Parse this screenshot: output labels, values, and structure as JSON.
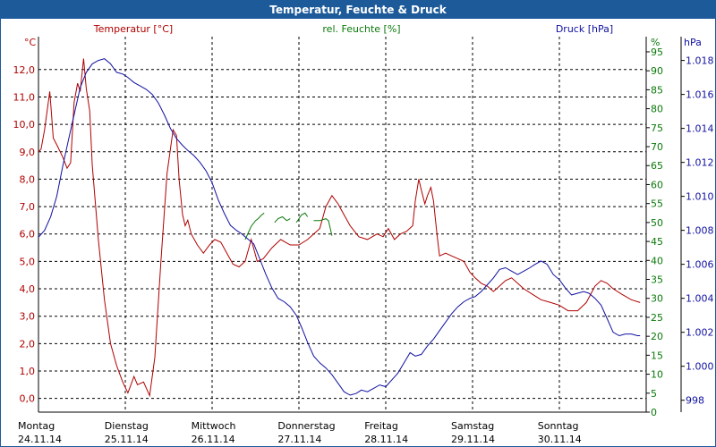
{
  "window": {
    "title": "Temperatur, Feuchte & Druck"
  },
  "colors": {
    "temperature": "#b00000",
    "humidity": "#0a7a0a",
    "pressure": "#1010a0",
    "titlebar": "#1d5a9a"
  },
  "chart_data": {
    "type": "line",
    "title": "Temperatur, Feuchte & Druck",
    "axes": {
      "temperature": {
        "unit": "°C",
        "label": "Temperatur [°C]",
        "range": [
          -0.5,
          13.2
        ],
        "ticks": [
          0,
          1,
          2,
          3,
          4,
          5,
          6,
          7,
          8,
          9,
          10,
          11,
          12
        ],
        "tick_labels": [
          "0,0",
          "1,0",
          "2,0",
          "3,0",
          "4,0",
          "5,0",
          "6,0",
          "7,0",
          "8,0",
          "9,0",
          "10,0",
          "11,0",
          "12,0"
        ]
      },
      "humidity": {
        "unit": "%",
        "label": "rel. Feuchte [%]",
        "range": [
          0,
          99
        ],
        "ticks": [
          0,
          5,
          10,
          15,
          20,
          25,
          30,
          35,
          40,
          45,
          50,
          55,
          60,
          65,
          70,
          75,
          80,
          85,
          90,
          95
        ],
        "tick_labels": [
          "0",
          "5",
          "10",
          "15",
          "20",
          "25",
          "30",
          "35",
          "40",
          "45",
          "50",
          "55",
          "60",
          "65",
          "70",
          "75",
          "80",
          "85",
          "90",
          "95"
        ]
      },
      "pressure": {
        "unit": "hPa",
        "label": "Druck [hPa]",
        "range": [
          997.3,
          1019.4
        ],
        "ticks": [
          998,
          1000,
          1002,
          1004,
          1006,
          1008,
          1010,
          1012,
          1014,
          1016,
          1018
        ],
        "tick_labels": [
          "998",
          "1.000",
          "1.002",
          "1.004",
          "1.006",
          "1.008",
          "1.010",
          "1.012",
          "1.014",
          "1.016",
          "1.018"
        ]
      }
    },
    "x_axis": {
      "range_days": [
        0,
        7
      ],
      "days": [
        {
          "name": "Montag",
          "date": "24.11.14"
        },
        {
          "name": "Dienstag",
          "date": "25.11.14"
        },
        {
          "name": "Mittwoch",
          "date": "26.11.14"
        },
        {
          "name": "Donnerstag",
          "date": "27.11.14"
        },
        {
          "name": "Freitag",
          "date": "28.11.14"
        },
        {
          "name": "Samstag",
          "date": "29.11.14"
        },
        {
          "name": "Sonntag",
          "date": "30.11.14"
        }
      ]
    },
    "series": [
      {
        "name": "Temperatur",
        "axis": "temperature",
        "points": [
          [
            0,
            9.0
          ],
          [
            0.03,
            9.1
          ],
          [
            0.07,
            9.8
          ],
          [
            0.13,
            11.2
          ],
          [
            0.15,
            10.4
          ],
          [
            0.17,
            9.5
          ],
          [
            0.22,
            9.2
          ],
          [
            0.28,
            8.8
          ],
          [
            0.33,
            8.4
          ],
          [
            0.37,
            8.6
          ],
          [
            0.41,
            10.8
          ],
          [
            0.45,
            11.5
          ],
          [
            0.48,
            11.2
          ],
          [
            0.52,
            12.4
          ],
          [
            0.55,
            11.3
          ],
          [
            0.59,
            10.5
          ],
          [
            0.62,
            8.5
          ],
          [
            0.69,
            5.8
          ],
          [
            0.76,
            3.6
          ],
          [
            0.83,
            2.0
          ],
          [
            0.9,
            1.2
          ],
          [
            0.97,
            0.6
          ],
          [
            1.03,
            0.2
          ],
          [
            1.1,
            0.8
          ],
          [
            1.14,
            0.5
          ],
          [
            1.21,
            0.6
          ],
          [
            1.28,
            0.1
          ],
          [
            1.34,
            1.5
          ],
          [
            1.41,
            5.0
          ],
          [
            1.48,
            8.2
          ],
          [
            1.55,
            9.8
          ],
          [
            1.59,
            9.6
          ],
          [
            1.62,
            8.0
          ],
          [
            1.66,
            6.7
          ],
          [
            1.69,
            6.3
          ],
          [
            1.72,
            6.5
          ],
          [
            1.76,
            6.0
          ],
          [
            1.83,
            5.6
          ],
          [
            1.9,
            5.3
          ],
          [
            1.97,
            5.6
          ],
          [
            2.03,
            5.8
          ],
          [
            2.1,
            5.7
          ],
          [
            2.17,
            5.3
          ],
          [
            2.24,
            4.9
          ],
          [
            2.31,
            4.8
          ],
          [
            2.38,
            5.0
          ],
          [
            2.45,
            5.8
          ],
          [
            2.52,
            5.0
          ],
          [
            2.59,
            5.1
          ],
          [
            2.69,
            5.5
          ],
          [
            2.79,
            5.8
          ],
          [
            2.9,
            5.6
          ],
          [
            3.0,
            5.6
          ],
          [
            3.1,
            5.8
          ],
          [
            3.17,
            6.0
          ],
          [
            3.24,
            6.2
          ],
          [
            3.31,
            7.0
          ],
          [
            3.38,
            7.4
          ],
          [
            3.45,
            7.1
          ],
          [
            3.52,
            6.7
          ],
          [
            3.59,
            6.3
          ],
          [
            3.69,
            5.9
          ],
          [
            3.79,
            5.8
          ],
          [
            3.9,
            6.0
          ],
          [
            3.97,
            5.9
          ],
          [
            4.03,
            6.2
          ],
          [
            4.1,
            5.8
          ],
          [
            4.17,
            6.0
          ],
          [
            4.24,
            6.1
          ],
          [
            4.31,
            6.3
          ],
          [
            4.34,
            7.2
          ],
          [
            4.38,
            8.0
          ],
          [
            4.41,
            7.6
          ],
          [
            4.45,
            7.1
          ],
          [
            4.48,
            7.4
          ],
          [
            4.52,
            7.7
          ],
          [
            4.55,
            7.2
          ],
          [
            4.59,
            6.0
          ],
          [
            4.62,
            5.2
          ],
          [
            4.69,
            5.3
          ],
          [
            4.76,
            5.2
          ],
          [
            4.83,
            5.1
          ],
          [
            4.9,
            5.0
          ],
          [
            4.97,
            4.6
          ],
          [
            5.03,
            4.4
          ],
          [
            5.1,
            4.2
          ],
          [
            5.17,
            4.1
          ],
          [
            5.24,
            3.9
          ],
          [
            5.31,
            4.1
          ],
          [
            5.38,
            4.3
          ],
          [
            5.45,
            4.4
          ],
          [
            5.52,
            4.2
          ],
          [
            5.59,
            4.0
          ],
          [
            5.69,
            3.8
          ],
          [
            5.79,
            3.6
          ],
          [
            5.9,
            3.5
          ],
          [
            6.0,
            3.4
          ],
          [
            6.1,
            3.2
          ],
          [
            6.21,
            3.2
          ],
          [
            6.31,
            3.5
          ],
          [
            6.41,
            4.1
          ],
          [
            6.48,
            4.3
          ],
          [
            6.55,
            4.2
          ],
          [
            6.62,
            4.0
          ],
          [
            6.72,
            3.8
          ],
          [
            6.83,
            3.6
          ],
          [
            6.93,
            3.5
          ]
        ]
      },
      {
        "name": "rel. Feuchte",
        "axis": "humidity",
        "segments": [
          [
            [
              2.38,
              45.5
            ],
            [
              2.45,
              49.0
            ],
            [
              2.5,
              50.5
            ],
            [
              2.53,
              51.0
            ],
            [
              2.55,
              51.5
            ],
            [
              2.57,
              52.0
            ],
            [
              2.6,
              52.5
            ]
          ],
          [
            [
              2.72,
              50.0
            ],
            [
              2.76,
              51.0
            ],
            [
              2.81,
              51.5
            ],
            [
              2.86,
              50.5
            ],
            [
              2.9,
              51.0
            ]
          ],
          [
            [
              2.97,
              50.0
            ],
            [
              3.0,
              51.0
            ],
            [
              3.03,
              52.0
            ],
            [
              3.07,
              52.5
            ],
            [
              3.1,
              51.5
            ]
          ],
          [
            [
              3.17,
              50.5
            ],
            [
              3.24,
              50.5
            ],
            [
              3.31,
              51.0
            ],
            [
              3.34,
              50.5
            ],
            [
              3.38,
              46.5
            ]
          ]
        ]
      },
      {
        "name": "Druck",
        "axis": "pressure",
        "points": [
          [
            0,
            1007.6
          ],
          [
            0.07,
            1008.0
          ],
          [
            0.14,
            1008.8
          ],
          [
            0.21,
            1010.0
          ],
          [
            0.28,
            1011.8
          ],
          [
            0.34,
            1013.2
          ],
          [
            0.41,
            1014.8
          ],
          [
            0.48,
            1016.4
          ],
          [
            0.55,
            1017.3
          ],
          [
            0.62,
            1017.8
          ],
          [
            0.69,
            1018.0
          ],
          [
            0.76,
            1018.1
          ],
          [
            0.83,
            1017.8
          ],
          [
            0.9,
            1017.3
          ],
          [
            0.97,
            1017.2
          ],
          [
            1.03,
            1017.0
          ],
          [
            1.1,
            1016.7
          ],
          [
            1.17,
            1016.5
          ],
          [
            1.24,
            1016.3
          ],
          [
            1.31,
            1016.0
          ],
          [
            1.38,
            1015.5
          ],
          [
            1.45,
            1014.8
          ],
          [
            1.52,
            1014.0
          ],
          [
            1.59,
            1013.4
          ],
          [
            1.66,
            1013.0
          ],
          [
            1.72,
            1012.7
          ],
          [
            1.79,
            1012.4
          ],
          [
            1.86,
            1012.0
          ],
          [
            1.93,
            1011.5
          ],
          [
            2.0,
            1010.8
          ],
          [
            2.07,
            1009.8
          ],
          [
            2.14,
            1009.0
          ],
          [
            2.21,
            1008.3
          ],
          [
            2.28,
            1008.0
          ],
          [
            2.34,
            1007.8
          ],
          [
            2.41,
            1007.5
          ],
          [
            2.48,
            1007.2
          ],
          [
            2.55,
            1006.3
          ],
          [
            2.62,
            1005.4
          ],
          [
            2.69,
            1004.6
          ],
          [
            2.76,
            1004.0
          ],
          [
            2.83,
            1003.8
          ],
          [
            2.9,
            1003.5
          ],
          [
            2.97,
            1003.0
          ],
          [
            3.03,
            1002.3
          ],
          [
            3.1,
            1001.4
          ],
          [
            3.17,
            1000.6
          ],
          [
            3.24,
            1000.2
          ],
          [
            3.31,
            999.9
          ],
          [
            3.38,
            999.5
          ],
          [
            3.45,
            999.0
          ],
          [
            3.52,
            998.5
          ],
          [
            3.59,
            998.3
          ],
          [
            3.66,
            998.4
          ],
          [
            3.72,
            998.6
          ],
          [
            3.79,
            998.5
          ],
          [
            3.86,
            998.7
          ],
          [
            3.93,
            998.9
          ],
          [
            4.0,
            998.8
          ],
          [
            4.07,
            999.2
          ],
          [
            4.14,
            999.6
          ],
          [
            4.21,
            1000.2
          ],
          [
            4.28,
            1000.8
          ],
          [
            4.34,
            1000.6
          ],
          [
            4.41,
            1000.7
          ],
          [
            4.48,
            1001.2
          ],
          [
            4.55,
            1001.6
          ],
          [
            4.62,
            1002.1
          ],
          [
            4.69,
            1002.6
          ],
          [
            4.76,
            1003.1
          ],
          [
            4.83,
            1003.5
          ],
          [
            4.9,
            1003.8
          ],
          [
            4.97,
            1004.0
          ],
          [
            5.03,
            1004.1
          ],
          [
            5.1,
            1004.4
          ],
          [
            5.17,
            1004.8
          ],
          [
            5.24,
            1005.2
          ],
          [
            5.31,
            1005.7
          ],
          [
            5.38,
            1005.8
          ],
          [
            5.45,
            1005.6
          ],
          [
            5.52,
            1005.4
          ],
          [
            5.59,
            1005.6
          ],
          [
            5.66,
            1005.8
          ],
          [
            5.72,
            1006.0
          ],
          [
            5.79,
            1006.2
          ],
          [
            5.86,
            1006.0
          ],
          [
            5.93,
            1005.4
          ],
          [
            6.0,
            1005.1
          ],
          [
            6.07,
            1004.6
          ],
          [
            6.14,
            1004.2
          ],
          [
            6.21,
            1004.3
          ],
          [
            6.28,
            1004.4
          ],
          [
            6.34,
            1004.3
          ],
          [
            6.41,
            1004.0
          ],
          [
            6.48,
            1003.6
          ],
          [
            6.55,
            1002.8
          ],
          [
            6.62,
            1002.0
          ],
          [
            6.69,
            1001.8
          ],
          [
            6.76,
            1001.9
          ],
          [
            6.83,
            1001.9
          ],
          [
            6.9,
            1001.8
          ],
          [
            6.93,
            1001.8
          ]
        ]
      }
    ]
  }
}
